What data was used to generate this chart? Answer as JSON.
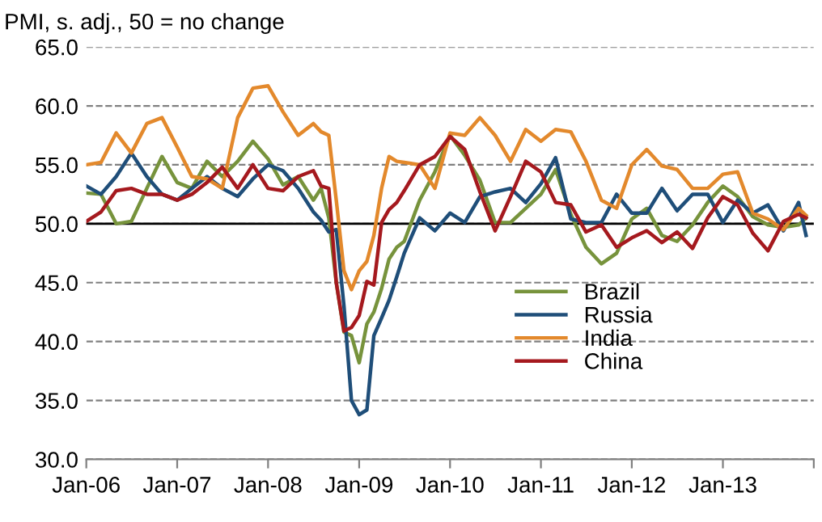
{
  "chart_data": {
    "type": "line",
    "title": "PMI, s. adj., 50 = no change",
    "x": [
      "2006-01",
      "2006-03",
      "2006-05",
      "2006-07",
      "2006-09",
      "2006-11",
      "2007-01",
      "2007-03",
      "2007-05",
      "2007-07",
      "2007-09",
      "2007-11",
      "2008-01",
      "2008-03",
      "2008-05",
      "2008-07",
      "2008-08",
      "2008-09",
      "2008-10",
      "2008-11",
      "2008-12",
      "2009-01",
      "2009-02",
      "2009-03",
      "2009-04",
      "2009-05",
      "2009-06",
      "2009-07",
      "2009-09",
      "2009-11",
      "2010-01",
      "2010-03",
      "2010-05",
      "2010-07",
      "2010-09",
      "2010-11",
      "2011-01",
      "2011-03",
      "2011-05",
      "2011-07",
      "2011-09",
      "2011-11",
      "2012-01",
      "2012-03",
      "2012-05",
      "2012-07",
      "2012-09",
      "2012-11",
      "2013-01",
      "2013-03",
      "2013-05",
      "2013-07",
      "2013-09",
      "2013-11",
      "2013-12"
    ],
    "series": [
      {
        "name": "Brazil",
        "color": "#77933c",
        "values": [
          52.6,
          52.5,
          50.0,
          50.2,
          53.0,
          55.7,
          53.5,
          53.0,
          55.3,
          54.0,
          55.3,
          57.0,
          55.5,
          53.3,
          54.0,
          52.0,
          53.0,
          50.5,
          45.0,
          40.8,
          40.5,
          38.2,
          41.5,
          42.5,
          44.5,
          47.0,
          48.0,
          48.5,
          52.0,
          54.4,
          57.5,
          55.8,
          53.7,
          50.1,
          50.1,
          51.3,
          52.5,
          54.6,
          50.8,
          48.0,
          46.6,
          47.5,
          50.4,
          51.3,
          49.0,
          48.5,
          49.9,
          51.8,
          53.2,
          52.3,
          50.6,
          49.9,
          49.7,
          49.9,
          50.5
        ]
      },
      {
        "name": "Russia",
        "color": "#1f4e79",
        "values": [
          53.2,
          52.5,
          54.0,
          56.0,
          54.0,
          52.5,
          52.0,
          53.0,
          54.0,
          53.0,
          52.3,
          53.8,
          55.0,
          54.5,
          53.0,
          51.0,
          50.3,
          49.3,
          49.5,
          43.0,
          35.0,
          33.8,
          34.2,
          40.5,
          42.0,
          43.5,
          45.5,
          47.5,
          50.5,
          49.4,
          50.9,
          50.1,
          52.3,
          52.7,
          53.0,
          51.8,
          53.4,
          55.6,
          50.4,
          50.1,
          50.1,
          52.5,
          50.9,
          50.9,
          53.0,
          51.1,
          52.5,
          52.5,
          50.1,
          52.0,
          50.9,
          51.6,
          49.4,
          51.8,
          49.0
        ]
      },
      {
        "name": "India",
        "color": "#e3892c",
        "values": [
          55.0,
          55.2,
          57.7,
          56.0,
          58.5,
          59.0,
          56.5,
          54.0,
          53.8,
          53.0,
          59.0,
          61.5,
          61.7,
          59.5,
          57.5,
          58.5,
          57.8,
          57.5,
          52.0,
          46.0,
          44.4,
          46.0,
          46.8,
          49.0,
          53.0,
          55.7,
          55.3,
          55.2,
          55.0,
          53.0,
          57.7,
          57.5,
          59.0,
          57.5,
          55.3,
          58.0,
          57.0,
          58.0,
          57.8,
          55.3,
          52.0,
          51.3,
          55.0,
          56.3,
          54.9,
          54.6,
          53.0,
          53.0,
          54.2,
          54.4,
          50.9,
          50.4,
          49.5,
          51.3,
          50.7
        ]
      },
      {
        "name": "China",
        "color": "#a5191e",
        "values": [
          50.2,
          51.0,
          52.8,
          53.0,
          52.5,
          52.5,
          52.0,
          52.5,
          53.5,
          54.8,
          53.0,
          55.0,
          53.0,
          52.8,
          54.0,
          54.5,
          53.2,
          53.0,
          45.0,
          40.9,
          41.2,
          42.2,
          45.1,
          44.8,
          50.1,
          51.2,
          51.8,
          52.8,
          55.0,
          55.7,
          57.4,
          56.3,
          52.7,
          49.4,
          52.3,
          55.3,
          54.4,
          51.8,
          51.6,
          49.3,
          49.9,
          48.0,
          48.8,
          49.4,
          48.4,
          49.3,
          47.9,
          50.5,
          52.3,
          51.6,
          49.2,
          47.7,
          50.2,
          50.8,
          50.5
        ]
      }
    ],
    "xlim": [
      "2006-01",
      "2014-01"
    ],
    "xticks": [
      {
        "value": "2006-01",
        "label": "Jan-06"
      },
      {
        "value": "2007-01",
        "label": "Jan-07"
      },
      {
        "value": "2008-01",
        "label": "Jan-08"
      },
      {
        "value": "2009-01",
        "label": "Jan-09"
      },
      {
        "value": "2010-01",
        "label": "Jan-10"
      },
      {
        "value": "2011-01",
        "label": "Jan-11"
      },
      {
        "value": "2012-01",
        "label": "Jan-12"
      },
      {
        "value": "2013-01",
        "label": "Jan-13"
      },
      {
        "value": "2014-01",
        "label": null
      }
    ],
    "ylim": [
      30,
      65
    ],
    "yticks": [
      {
        "value": 30,
        "label": "30.0"
      },
      {
        "value": 35,
        "label": "35.0"
      },
      {
        "value": 40,
        "label": "40.0"
      },
      {
        "value": 45,
        "label": "45.0"
      },
      {
        "value": 50,
        "label": "50.0"
      },
      {
        "value": 55,
        "label": "55.0"
      },
      {
        "value": 60,
        "label": "60.0"
      },
      {
        "value": 65,
        "label": "65.0"
      }
    ],
    "ref_lines": [
      {
        "axis": "y",
        "value": 50,
        "color": "#000000"
      }
    ],
    "grid": "y",
    "legend": "bottom right",
    "marker": "none",
    "line_style": "solid"
  }
}
